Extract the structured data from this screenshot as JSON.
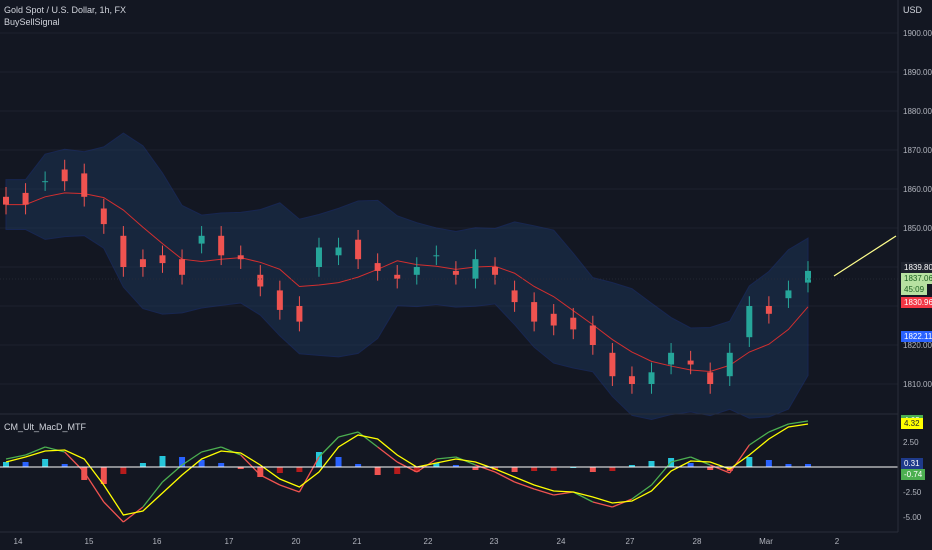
{
  "header": {
    "symbol": "Gold Spot / U.S. Dollar, 1h, FX",
    "indicator": "BuySellSignal",
    "currency": "USD",
    "lower_indicator": "CM_Ult_MacD_MTF"
  },
  "price_axis": {
    "ticks": [
      "1900.00",
      "1890.00",
      "1880.00",
      "1870.00",
      "1860.00",
      "1850.00",
      "1820.00",
      "1810.00"
    ],
    "tick_values": [
      1900,
      1890,
      1880,
      1870,
      1860,
      1850,
      1820,
      1810
    ],
    "tags": [
      {
        "text": "1839.80",
        "bg": "#1e222d",
        "color": "#ffffff",
        "value": 1839.8
      },
      {
        "text": "1837.06",
        "bg": "#b7e1a1",
        "color": "#1b5e20",
        "value": 1837.06
      },
      {
        "text": "45:09",
        "bg": "#b7e1a1",
        "color": "#1b5e20",
        "value": 1834.3
      },
      {
        "text": "1830.96",
        "bg": "#f23645",
        "color": "#ffffff",
        "value": 1830.96
      },
      {
        "text": "1822.11",
        "bg": "#2962ff",
        "color": "#ffffff",
        "value": 1822.11
      }
    ]
  },
  "macd_axis": {
    "ticks": [
      "2.50",
      "-2.50",
      "-5.00"
    ],
    "tick_values": [
      2.5,
      -2.5,
      -5
    ],
    "tags": [
      {
        "text": "4.63",
        "bg": "#4caf50",
        "color": "#ffffff",
        "value": 4.63
      },
      {
        "text": "4.32",
        "bg": "#ffff00",
        "color": "#1e222d",
        "value": 4.32
      },
      {
        "text": "0.31",
        "bg": "#1e3a8a",
        "color": "#ffffff",
        "value": 0.31
      },
      {
        "text": "-0.74",
        "bg": "#4caf50",
        "color": "#ffffff",
        "value": -0.74
      }
    ]
  },
  "x_axis": {
    "ticks": [
      "14",
      "15",
      "16",
      "17",
      "20",
      "21",
      "22",
      "23",
      "24",
      "27",
      "28",
      "Mar",
      "2"
    ]
  },
  "colors": {
    "background": "#131722",
    "up": "#26a69a",
    "down": "#ef5350",
    "band": "#1e3a8a",
    "ma": "#d32f2f",
    "macd_line": "#4caf50",
    "signal_line": "#ffff00",
    "trendline": "#ffff8d"
  },
  "chart_data": {
    "type": "candlestick",
    "price_series": [
      [
        0,
        1858,
        1856
      ],
      [
        1,
        1859,
        1856
      ],
      [
        2,
        1862,
        1862
      ],
      [
        3,
        1865,
        1862
      ],
      [
        4,
        1864,
        1858
      ],
      [
        5,
        1855,
        1851
      ],
      [
        6,
        1848,
        1840
      ],
      [
        7,
        1842,
        1840
      ],
      [
        8,
        1843,
        1841
      ],
      [
        9,
        1842,
        1838
      ],
      [
        10,
        1846,
        1848
      ],
      [
        11,
        1848,
        1843
      ],
      [
        12,
        1843,
        1842
      ],
      [
        13,
        1838,
        1835
      ],
      [
        14,
        1834,
        1829
      ],
      [
        15,
        1830,
        1826
      ],
      [
        16,
        1840,
        1845
      ],
      [
        17,
        1843,
        1845
      ],
      [
        18,
        1847,
        1842
      ],
      [
        19,
        1841,
        1839
      ],
      [
        20,
        1838,
        1837
      ],
      [
        21,
        1838,
        1840
      ],
      [
        22,
        1843,
        1843
      ],
      [
        23,
        1839,
        1838
      ],
      [
        24,
        1837,
        1842
      ],
      [
        25,
        1840,
        1838
      ],
      [
        26,
        1834,
        1831
      ],
      [
        27,
        1831,
        1826
      ],
      [
        28,
        1828,
        1825
      ],
      [
        29,
        1827,
        1824
      ],
      [
        30,
        1825,
        1820
      ],
      [
        31,
        1818,
        1812
      ],
      [
        32,
        1812,
        1810
      ],
      [
        33,
        1810,
        1813
      ],
      [
        34,
        1815,
        1818
      ],
      [
        35,
        1816,
        1815
      ],
      [
        36,
        1813,
        1810
      ],
      [
        37,
        1812,
        1818
      ],
      [
        38,
        1822,
        1830
      ],
      [
        39,
        1830,
        1828
      ],
      [
        40,
        1832,
        1834
      ],
      [
        41,
        1836,
        1839
      ]
    ],
    "series": [
      {
        "name": "",
        "values": [
          0.8,
          1.2,
          2.0,
          1.5,
          -0.5,
          -3.5,
          -5.5,
          -4.0,
          -1.5,
          0.2,
          1.5,
          2.0,
          1.2,
          -0.8,
          -1.8,
          -2.5,
          1.0,
          3.0,
          3.5,
          2.0,
          0.5,
          -0.5,
          0.8,
          1.0,
          0.2,
          -0.5,
          -1.5,
          -2.2,
          -2.8,
          -2.5,
          -3.5,
          -4.0,
          -3.2,
          -1.8,
          0.5,
          1.0,
          0.2,
          -0.6,
          2.2,
          3.5,
          4.3,
          4.6
        ]
      },
      {
        "name": "",
        "values": [
          0.5,
          1.0,
          1.6,
          1.7,
          0.8,
          -1.8,
          -4.8,
          -4.4,
          -2.6,
          -0.8,
          0.8,
          1.6,
          1.4,
          0.2,
          -1.2,
          -2.0,
          -0.5,
          2.0,
          3.2,
          2.8,
          1.2,
          0.0,
          0.4,
          0.8,
          0.5,
          -0.2,
          -1.0,
          -1.8,
          -2.4,
          -2.5,
          -3.0,
          -3.6,
          -3.4,
          -2.4,
          -0.4,
          0.6,
          0.5,
          -0.2,
          1.2,
          2.8,
          4.0,
          4.3
        ]
      },
      {
        "name": "",
        "values": [
          0.5,
          0.5,
          0.8,
          0.3,
          -1.3,
          -1.7,
          -0.7,
          0.4,
          1.1,
          1.0,
          0.7,
          0.4,
          -0.2,
          -1.0,
          -0.6,
          -0.5,
          1.5,
          1.0,
          0.3,
          -0.8,
          -0.7,
          -0.5,
          0.4,
          0.2,
          -0.3,
          -0.3,
          -0.5,
          -0.4,
          -0.4,
          0.0,
          -0.5,
          -0.4,
          0.2,
          0.6,
          0.9,
          0.4,
          -0.3,
          -0.4,
          1.0,
          0.7,
          0.3,
          0.3
        ]
      }
    ]
  }
}
